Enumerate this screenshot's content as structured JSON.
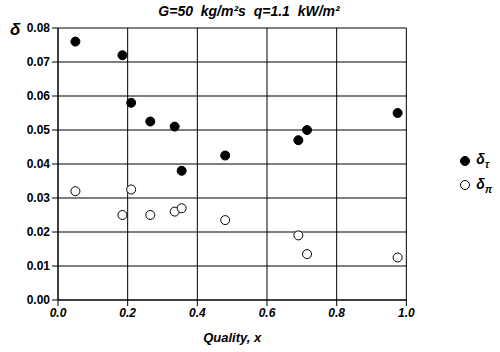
{
  "chart_data": {
    "type": "scatter",
    "title": "G=50  kg/m²s  q=1.1  kW/m²",
    "x_label": "Quality, x",
    "y_label": "δ",
    "x": [
      0.05,
      0.185,
      0.21,
      0.265,
      0.335,
      0.355,
      0.48,
      0.69,
      0.715,
      0.975
    ],
    "series": [
      {
        "name": "δτ",
        "color": "#000000",
        "marker": "filled",
        "values": [
          0.076,
          0.072,
          0.058,
          0.0525,
          0.051,
          0.038,
          0.0425,
          0.047,
          0.05,
          0.055
        ]
      },
      {
        "name": "δπ",
        "color": "#000000",
        "marker": "open",
        "values": [
          0.032,
          0.025,
          0.0325,
          0.025,
          0.026,
          0.027,
          0.0235,
          0.019,
          0.0135,
          0.0125
        ]
      }
    ],
    "xlim": [
      0,
      1
    ],
    "xticks": [
      {
        "value": 0,
        "label": "0.0"
      },
      0.2,
      0.4,
      0.6,
      0.8,
      {
        "value": 1,
        "label": "1.0"
      }
    ],
    "ylim": [
      0,
      0.08
    ],
    "yticks": [
      {
        "value": 0,
        "label": "0.00"
      },
      0.01,
      0.02,
      0.03,
      0.04,
      0.05,
      0.06,
      0.07,
      0.08
    ],
    "grid": true,
    "legend": "right"
  }
}
